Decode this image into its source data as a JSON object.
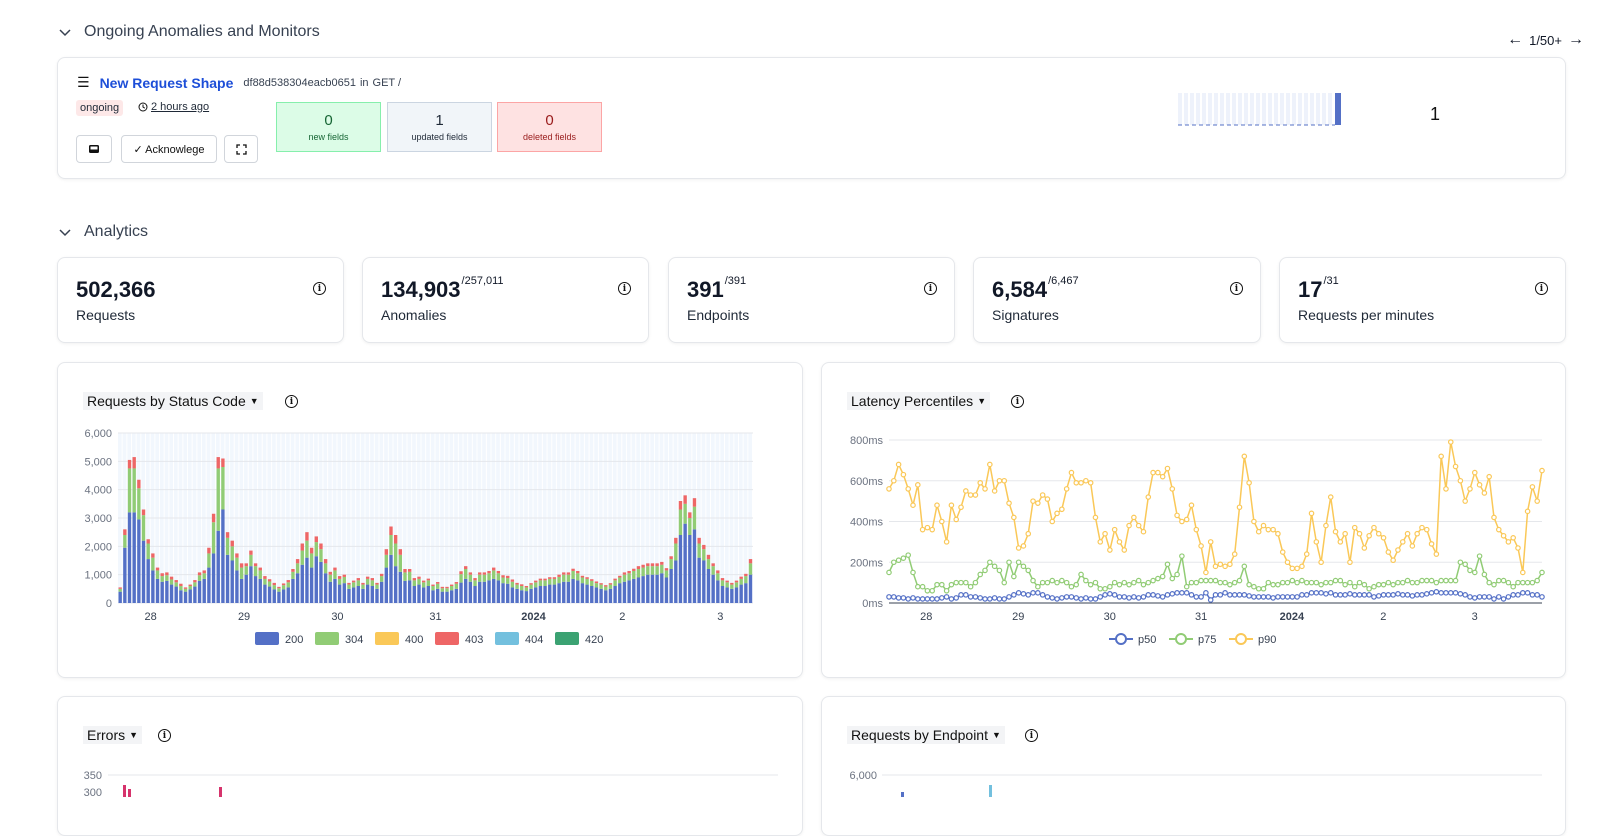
{
  "sections": {
    "anomalies_title": "Ongoing Anomalies and Monitors",
    "analytics_title": "Analytics"
  },
  "pager": {
    "label": "1/50+"
  },
  "anomaly": {
    "title": "New Request Shape",
    "hash": "df88d538304eacb0651",
    "in_word": "in",
    "endpoint": "GET /",
    "status": "ongoing",
    "time_ago": "2 hours ago",
    "acknowledge_label": "✓ Acknowlege",
    "new_fields": {
      "count": "0",
      "label": "new fields"
    },
    "updated_fields": {
      "count": "1",
      "label": "updated fields"
    },
    "deleted_fields": {
      "count": "0",
      "label": "deleted fields"
    },
    "event_count": "1"
  },
  "metrics": [
    {
      "value": "502,366",
      "total": "",
      "label": "Requests"
    },
    {
      "value": "134,903",
      "total": "/257,011",
      "label": "Anomalies"
    },
    {
      "value": "391",
      "total": "/391",
      "label": "Endpoints"
    },
    {
      "value": "6,584",
      "total": "/6,467",
      "label": "Signatures"
    },
    {
      "value": "17",
      "total": "/31",
      "label": "Requests per minutes"
    }
  ],
  "charts": {
    "status": {
      "select": "Requests by Status Code"
    },
    "latency": {
      "select": "Latency Percentiles"
    },
    "errors": {
      "select": "Errors"
    },
    "endpoint": {
      "select": "Requests by Endpoint"
    }
  },
  "colors": {
    "200": "#5470c6",
    "304": "#91cc75",
    "400": "#fac858",
    "403": "#ee6666",
    "404": "#73c0de",
    "420": "#3ba272",
    "p50": "#5470c6",
    "p75": "#91cc75",
    "p90": "#fac858"
  },
  "chart_data": [
    {
      "type": "bar",
      "title": "Requests by Status Code",
      "x_ticks": [
        "28",
        "29",
        "30",
        "31",
        "2024",
        "2",
        "3"
      ],
      "y_ticks": [
        "0",
        "1,000",
        "2,000",
        "3,000",
        "4,000",
        "5,000",
        "6,000"
      ],
      "ylim": [
        0,
        6000
      ],
      "legend": [
        "200",
        "304",
        "400",
        "403",
        "404",
        "420"
      ],
      "series": [
        {
          "name": "200",
          "values": [
            400,
            1950,
            3200,
            3200,
            2950,
            2200,
            1550,
            1150,
            850,
            750,
            780,
            650,
            580,
            450,
            400,
            480,
            580,
            780,
            850,
            1250,
            1750,
            2550,
            3300,
            1700,
            1500,
            1150,
            850,
            1000,
            1300,
            950,
            850,
            650,
            580,
            480,
            400,
            480,
            550,
            850,
            1050,
            1350,
            1600,
            1250,
            1650,
            1450,
            1050,
            750,
            850,
            650,
            700,
            500,
            550,
            600,
            500,
            650,
            600,
            500,
            750,
            1250,
            1700,
            1300,
            1100,
            780,
            800,
            600,
            650,
            550,
            600,
            450,
            500,
            400,
            400,
            450,
            500,
            720,
            850,
            750,
            600,
            750,
            750,
            800,
            850,
            800,
            700,
            680,
            550,
            500,
            450,
            420,
            500,
            550,
            600,
            600,
            650,
            650,
            700,
            750,
            750,
            850,
            800,
            700,
            650,
            600,
            550,
            500,
            450,
            500,
            600,
            700,
            750,
            800,
            850,
            900,
            950,
            1000,
            1000,
            1000,
            1050,
            900,
            1200,
            1500,
            2400,
            2800,
            2400,
            2600,
            1600,
            1500,
            1200,
            1000,
            800,
            600,
            550,
            500,
            550,
            650,
            700,
            1000
          ]
        },
        {
          "name": "304",
          "values": [
            100,
            450,
            1550,
            1550,
            1100,
            900,
            550,
            450,
            300,
            200,
            200,
            180,
            150,
            150,
            100,
            120,
            150,
            200,
            200,
            500,
            1100,
            2200,
            1500,
            600,
            500,
            450,
            400,
            300,
            400,
            350,
            300,
            200,
            180,
            150,
            120,
            150,
            180,
            250,
            350,
            500,
            600,
            500,
            500,
            450,
            350,
            250,
            300,
            200,
            220,
            150,
            180,
            200,
            150,
            200,
            200,
            150,
            200,
            450,
            700,
            800,
            600,
            300,
            300,
            200,
            200,
            180,
            200,
            150,
            180,
            120,
            120,
            150,
            180,
            300,
            350,
            250,
            200,
            250,
            250,
            250,
            300,
            250,
            200,
            200,
            200,
            150,
            150,
            130,
            150,
            180,
            200,
            200,
            200,
            200,
            220,
            250,
            250,
            280,
            250,
            200,
            200,
            180,
            150,
            150,
            130,
            150,
            200,
            200,
            250,
            250,
            280,
            300,
            300,
            300,
            300,
            300,
            300,
            250,
            350,
            600,
            900,
            700,
            600,
            800,
            500,
            400,
            350,
            300,
            250,
            200,
            180,
            150,
            180,
            200,
            250,
            400
          ]
        },
        {
          "name": "403",
          "values": [
            50,
            200,
            300,
            400,
            300,
            200,
            150,
            150,
            100,
            100,
            100,
            100,
            80,
            80,
            50,
            50,
            80,
            100,
            100,
            200,
            300,
            400,
            300,
            200,
            200,
            150,
            150,
            100,
            150,
            100,
            100,
            100,
            80,
            80,
            50,
            60,
            80,
            100,
            150,
            250,
            300,
            200,
            200,
            200,
            150,
            100,
            100,
            100,
            80,
            60,
            60,
            80,
            60,
            80,
            80,
            60,
            80,
            200,
            300,
            300,
            200,
            120,
            100,
            80,
            80,
            60,
            60,
            50,
            60,
            50,
            50,
            50,
            60,
            100,
            100,
            80,
            80,
            80,
            80,
            80,
            100,
            80,
            80,
            80,
            80,
            60,
            60,
            50,
            50,
            60,
            60,
            60,
            60,
            60,
            80,
            80,
            80,
            80,
            80,
            60,
            60,
            60,
            60,
            50,
            50,
            50,
            60,
            60,
            80,
            80,
            80,
            100,
            100,
            100,
            100,
            100,
            100,
            80,
            100,
            200,
            300,
            300,
            200,
            300,
            200,
            150,
            150,
            100,
            100,
            80,
            60,
            60,
            60,
            80,
            80,
            150
          ]
        }
      ]
    },
    {
      "type": "line",
      "title": "Latency Percentiles",
      "x_ticks": [
        "28",
        "29",
        "30",
        "31",
        "2024",
        "2",
        "3"
      ],
      "y_ticks": [
        "0ms",
        "200ms",
        "400ms",
        "600ms",
        "800ms"
      ],
      "ylim": [
        0,
        800
      ],
      "legend": [
        "p50",
        "p75",
        "p90"
      ],
      "series": [
        {
          "name": "p50",
          "values": [
            30,
            30,
            25,
            25,
            20,
            25,
            20,
            20,
            20,
            20,
            20,
            25,
            30,
            20,
            25,
            40,
            40,
            30,
            30,
            25,
            20,
            20,
            25,
            20,
            20,
            30,
            40,
            50,
            45,
            40,
            50,
            50,
            40,
            30,
            25,
            20,
            25,
            30,
            30,
            25,
            20,
            25,
            20,
            20,
            30,
            40,
            45,
            40,
            30,
            30,
            25,
            30,
            25,
            30,
            40,
            40,
            35,
            30,
            40,
            45,
            50,
            50,
            50,
            40,
            30,
            30,
            50,
            15,
            40,
            40,
            50,
            40,
            40,
            40,
            40,
            35,
            30,
            30,
            30,
            30,
            25,
            30,
            30,
            30,
            30,
            30,
            40,
            40,
            50,
            50,
            50,
            45,
            50,
            40,
            40,
            40,
            45,
            40,
            40,
            40,
            40,
            30,
            35,
            40,
            40,
            40,
            45,
            40,
            40,
            35,
            40,
            40,
            45,
            50,
            55,
            50,
            50,
            50,
            50,
            45,
            40,
            30,
            25,
            30,
            30,
            30,
            20,
            30,
            20,
            30,
            40,
            40,
            50,
            50,
            40,
            40,
            30
          ]
        },
        {
          "name": "p75",
          "values": [
            150,
            200,
            210,
            220,
            235,
            150,
            80,
            80,
            60,
            60,
            90,
            90,
            60,
            90,
            100,
            100,
            100,
            80,
            100,
            140,
            160,
            200,
            180,
            160,
            100,
            200,
            130,
            200,
            180,
            160,
            110,
            80,
            100,
            100,
            110,
            100,
            110,
            100,
            80,
            90,
            140,
            110,
            90,
            100,
            70,
            70,
            80,
            100,
            90,
            100,
            90,
            100,
            110,
            90,
            100,
            110,
            120,
            130,
            190,
            120,
            140,
            230,
            80,
            100,
            100,
            110,
            110,
            110,
            110,
            100,
            100,
            90,
            100,
            110,
            180,
            90,
            80,
            70,
            70,
            100,
            90,
            90,
            100,
            100,
            110,
            100,
            110,
            100,
            100,
            100,
            90,
            100,
            100,
            110,
            110,
            90,
            100,
            80,
            100,
            90,
            70,
            80,
            90,
            90,
            100,
            90,
            100,
            100,
            110,
            100,
            100,
            110,
            110,
            110,
            100,
            110,
            110,
            110,
            110,
            200,
            190,
            160,
            150,
            230,
            140,
            100,
            90,
            110,
            110,
            100,
            80,
            100,
            100,
            100,
            100,
            110,
            150
          ]
        },
        {
          "name": "p90",
          "values": [
            560,
            600,
            680,
            630,
            560,
            480,
            580,
            360,
            370,
            360,
            480,
            400,
            300,
            480,
            410,
            470,
            550,
            530,
            530,
            590,
            560,
            680,
            550,
            600,
            600,
            490,
            420,
            270,
            280,
            340,
            500,
            490,
            530,
            510,
            400,
            440,
            460,
            560,
            640,
            590,
            590,
            600,
            590,
            420,
            300,
            340,
            260,
            360,
            300,
            260,
            380,
            420,
            380,
            350,
            520,
            640,
            640,
            620,
            660,
            560,
            430,
            400,
            410,
            480,
            360,
            280,
            150,
            300,
            180,
            190,
            180,
            190,
            240,
            470,
            720,
            590,
            400,
            350,
            380,
            360,
            360,
            340,
            250,
            200,
            170,
            170,
            180,
            240,
            440,
            300,
            200,
            380,
            520,
            350,
            300,
            340,
            200,
            370,
            340,
            270,
            330,
            370,
            340,
            320,
            250,
            210,
            260,
            300,
            340,
            280,
            340,
            370,
            360,
            290,
            240,
            720,
            560,
            790,
            670,
            600,
            500,
            560,
            640,
            580,
            540,
            620,
            420,
            360,
            330,
            300,
            320,
            270,
            150,
            450,
            570,
            500,
            650
          ]
        }
      ]
    }
  ]
}
